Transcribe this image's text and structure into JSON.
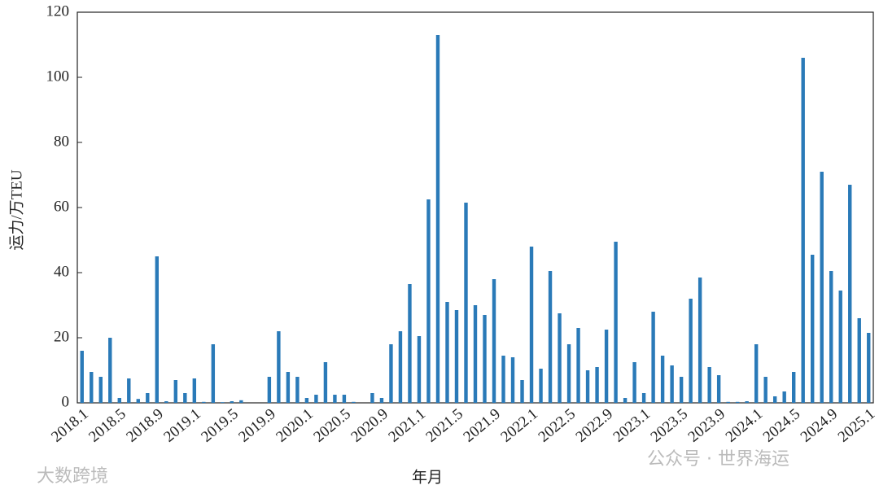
{
  "chart_data": {
    "type": "bar",
    "x_label": "年月",
    "y_label": "运力/万TEU",
    "watermarks": [
      "大数跨境",
      "公众号 · 世界海运"
    ],
    "color": "#2a7ab8",
    "categories": [
      "2018.1",
      null,
      null,
      null,
      "2018.5",
      null,
      null,
      null,
      "2018.9",
      null,
      null,
      null,
      "2019.1",
      null,
      null,
      null,
      "2019.5",
      null,
      null,
      null,
      "2019.9",
      null,
      null,
      null,
      "2020.1",
      null,
      null,
      null,
      "2020.5",
      null,
      null,
      null,
      "2020.9",
      null,
      null,
      null,
      "2021.1",
      null,
      null,
      null,
      "2021.5",
      null,
      null,
      null,
      "2021.9",
      null,
      null,
      null,
      "2022.1",
      null,
      null,
      null,
      "2022.5",
      null,
      null,
      null,
      "2022.9",
      null,
      null,
      null,
      "2023.1",
      null,
      null,
      null,
      "2023.5",
      null,
      null,
      null,
      "2023.9",
      null,
      null,
      null,
      "2024.1",
      null,
      null,
      null,
      "2024.5",
      null,
      null,
      null,
      "2024.9",
      null,
      null,
      null,
      "2025.1"
    ],
    "values": [
      16,
      9.5,
      8,
      20,
      1.5,
      7.5,
      1.2,
      3,
      45,
      0.5,
      7,
      3,
      7.5,
      0.3,
      18,
      0.2,
      0.5,
      0.8,
      0,
      0,
      8,
      22,
      9.5,
      8,
      1.5,
      2.5,
      12.5,
      2.5,
      2.5,
      0.3,
      0,
      3,
      1.5,
      18,
      22,
      36.5,
      20.5,
      62.5,
      113,
      31,
      28.5,
      61.5,
      30,
      27,
      38,
      14.5,
      14,
      7,
      48,
      10.5,
      40.5,
      27.5,
      18,
      23,
      10,
      11,
      22.5,
      49.5,
      1.5,
      12.5,
      3,
      28,
      14.5,
      11.5,
      8,
      32,
      38.5,
      11,
      8.5,
      0.3,
      0.3,
      0.5,
      18,
      8,
      2,
      3.5,
      9.5,
      106,
      45.5,
      71,
      40.5,
      34.5,
      67,
      26,
      21.5
    ],
    "ylim": [
      0,
      120
    ],
    "yticks": [
      0,
      20,
      40,
      60,
      80,
      100,
      120
    ]
  }
}
